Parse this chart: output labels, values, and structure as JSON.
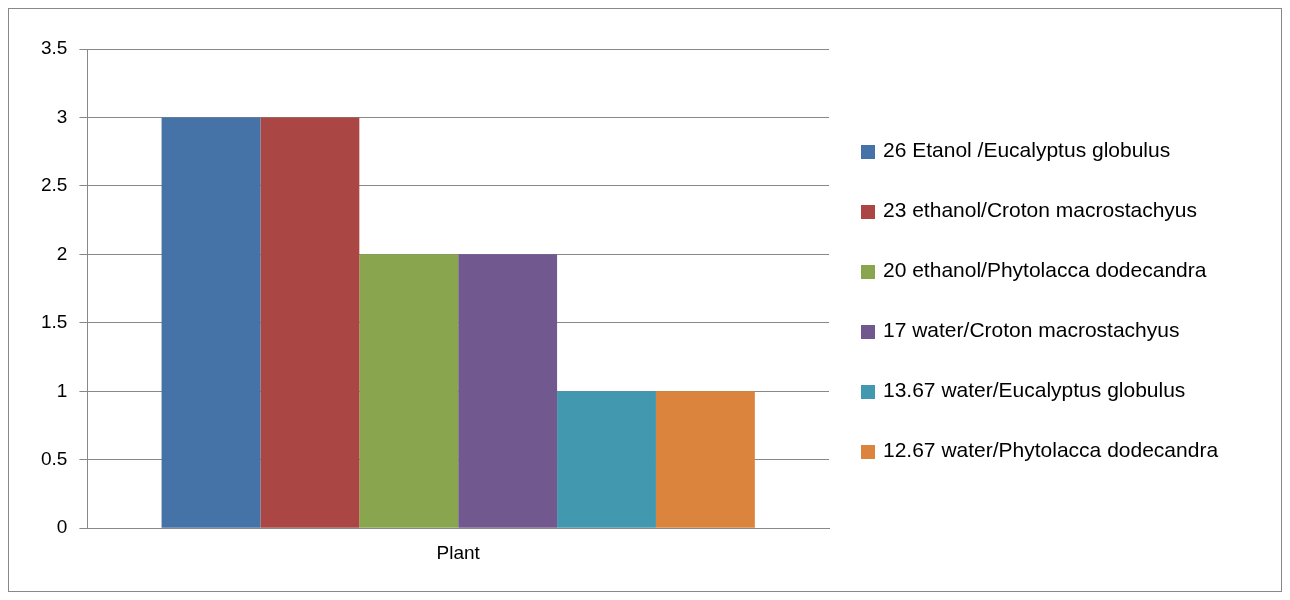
{
  "chart_data": {
    "type": "bar",
    "categories": [
      "Plant"
    ],
    "series": [
      {
        "name": "26 Etanol /Eucalyptus globulus",
        "color": "#4572a7",
        "values": [
          3
        ]
      },
      {
        "name": "23 ethanol/Croton macrostachyus",
        "color": "#aa4643",
        "values": [
          3
        ]
      },
      {
        "name": "20 ethanol/Phytolacca dodecandra",
        "color": "#89a54e",
        "values": [
          2
        ]
      },
      {
        "name": "17 water/Croton macrostachyus",
        "color": "#71588f",
        "values": [
          2
        ]
      },
      {
        "name": "13.67 water/Eucalyptus globulus",
        "color": "#4198af",
        "values": [
          1
        ]
      },
      {
        "name": "12.67 water/Phytolacca dodecandra",
        "color": "#db843d",
        "values": [
          1
        ]
      }
    ],
    "ylim": [
      0,
      3.5
    ],
    "yticks": [
      0,
      0.5,
      1,
      1.5,
      2,
      2.5,
      3,
      3.5
    ],
    "grid": "y",
    "legend": "right"
  }
}
